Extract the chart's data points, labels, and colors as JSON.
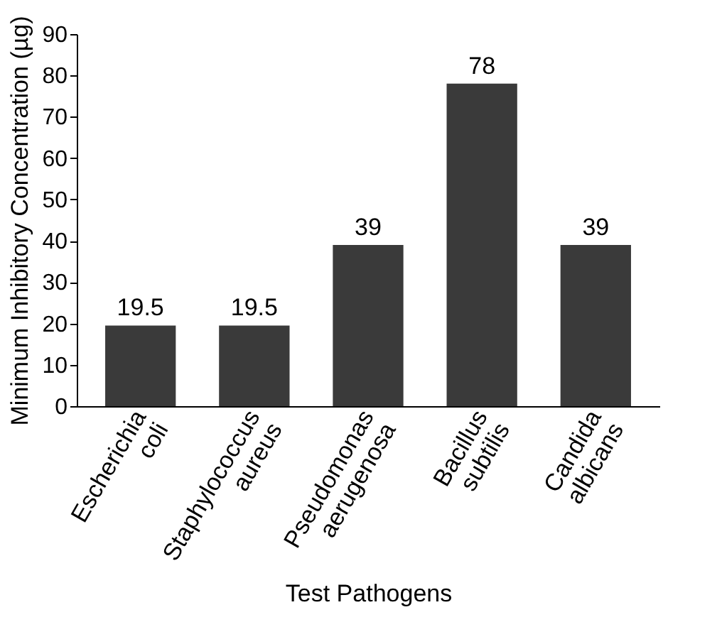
{
  "chart_data": {
    "type": "bar",
    "xlabel": "Test Pathogens",
    "ylabel": "Minimum Inhibitory Concentration (µg)",
    "categories": [
      "Escherichia coli",
      "Staphylococcus aureus",
      "Pseudomonas aerugenosa",
      "Bacillus subtilis",
      "Candida albicans"
    ],
    "values": [
      19.5,
      19.5,
      39,
      78,
      39
    ],
    "color": "#3a3a3a",
    "ylim": [
      0,
      90
    ],
    "yticks": [
      0,
      10,
      20,
      30,
      40,
      50,
      60,
      70,
      80,
      90
    ],
    "grid": false,
    "data_labels": true
  }
}
